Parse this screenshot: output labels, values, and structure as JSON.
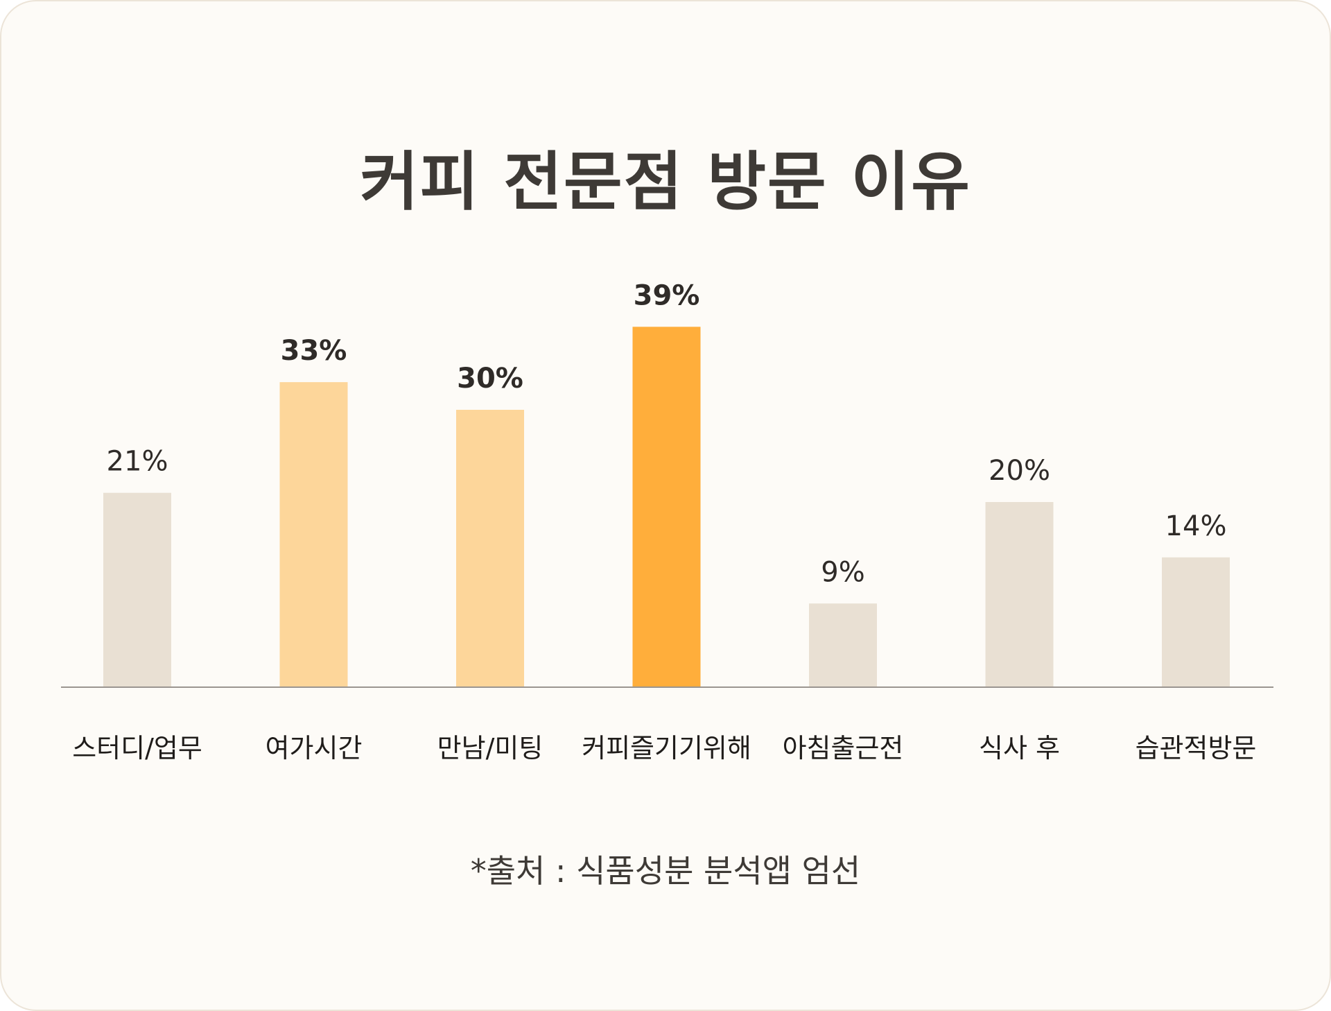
{
  "chart_data": {
    "type": "bar",
    "title": "커피 전문점 방문 이유",
    "categories": [
      "스터디/업무",
      "여가시간",
      "만남/미팅",
      "커피즐기기위해",
      "아침출근전",
      "식사 후",
      "습관적방문"
    ],
    "values": [
      21,
      33,
      30,
      39,
      9,
      20,
      14
    ],
    "value_labels": [
      "21%",
      "33%",
      "30%",
      "39%",
      "9%",
      "20%",
      "14%"
    ],
    "value_unit": "%",
    "highlight": [
      "none",
      "mid",
      "mid",
      "max",
      "none",
      "none",
      "none"
    ],
    "xlabel": "",
    "ylabel": "",
    "grid": false,
    "legend": "none"
  },
  "colors": {
    "default": "#e9e0d3",
    "mid": "#fdd69a",
    "max": "#ffae3b",
    "axis": "#9a9590",
    "text": "#2f2b28",
    "background": "#fdfbf7"
  },
  "source_note": "*출처 : 식품성분 분석앱 엄선"
}
